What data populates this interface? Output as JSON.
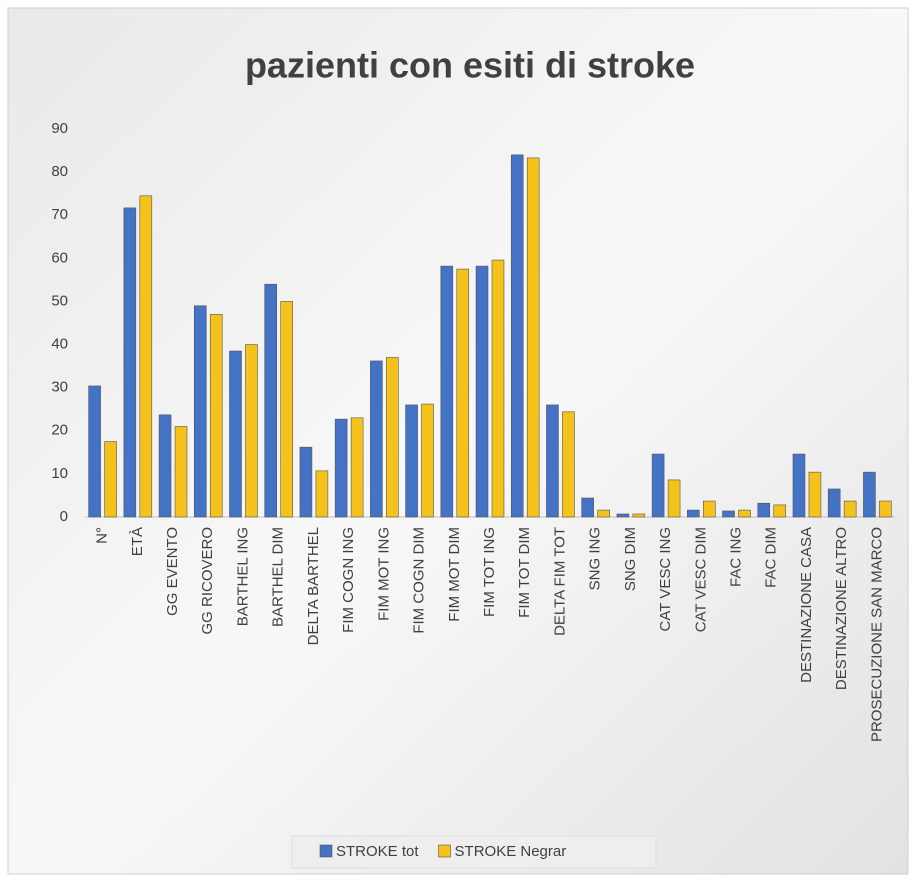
{
  "chart_data": {
    "type": "bar",
    "title": "pazienti con esiti di stroke",
    "categories": [
      "N°",
      "ETÀ",
      "GG EVENTO",
      "GG RICOVERO",
      "BARTHEL ING",
      "BARTHEL DIM",
      "DELTA BARTHEL",
      "FIM COGN ING",
      "FIM MOT ING",
      "FIM COGN DIM",
      "FIM MOT DIM",
      "FIM TOT ING",
      "FIM TOT DIM",
      "DELTA FIM TOT",
      "SNG ING",
      "SNG DIM",
      "CAT VESC ING",
      "CAT VESC DIM",
      "FAC ING",
      "FAC DIM",
      "DESTINAZIONE CASA",
      "DESTINAZIONE ALTRO",
      "PROSECUZIONE SAN MARCO"
    ],
    "series": [
      {
        "name": "STROKE tot",
        "color": "#4472c4",
        "values": [
          30.4,
          71.7,
          23.7,
          49,
          38.5,
          54,
          16.2,
          22.7,
          36.2,
          26,
          58.2,
          58.2,
          84,
          26,
          4.4,
          0.7,
          14.6,
          1.6,
          1.4,
          3.2,
          14.6,
          6.5,
          10.4
        ]
      },
      {
        "name": "STROKE Negrar",
        "color": "#f5c21b",
        "values": [
          17.5,
          74.5,
          21,
          47,
          40,
          50,
          10.7,
          23,
          37,
          26.2,
          57.5,
          59.6,
          83.3,
          24.4,
          1.6,
          0.7,
          8.6,
          3.7,
          1.6,
          2.8,
          10.4,
          3.7,
          3.7
        ]
      }
    ],
    "ylim": [
      0,
      90
    ],
    "yticks": [
      0,
      10,
      20,
      30,
      40,
      50,
      60,
      70,
      80,
      90
    ],
    "grid": false,
    "legend": "bottom"
  }
}
